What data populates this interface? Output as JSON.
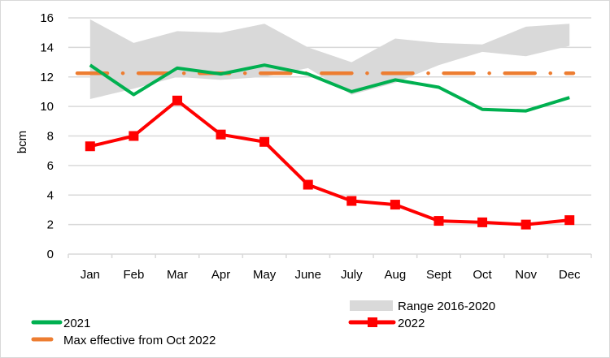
{
  "chart_data": {
    "type": "line",
    "title": "",
    "xlabel": "",
    "ylabel": "bcm",
    "ylim": [
      0,
      16
    ],
    "yticks": [
      0,
      2,
      4,
      6,
      8,
      10,
      12,
      14,
      16
    ],
    "grid": true,
    "legend_position": "bottom",
    "categories": [
      "Jan",
      "Feb",
      "Mar",
      "Apr",
      "May",
      "June",
      "July",
      "Aug",
      "Sept",
      "Oct",
      "Nov",
      "Dec"
    ],
    "range": {
      "name": "Range 2016-2020",
      "color": "#d9d9d9",
      "low": [
        10.5,
        11.2,
        12.0,
        11.8,
        12.0,
        12.6,
        10.8,
        11.6,
        12.8,
        13.7,
        13.4,
        14.1
      ],
      "high": [
        15.9,
        14.3,
        15.1,
        15.0,
        15.6,
        14.0,
        13.0,
        14.6,
        14.3,
        14.2,
        15.4,
        15.6
      ]
    },
    "series": [
      {
        "name": "2021",
        "color": "#00b050",
        "marker": "none",
        "values": [
          12.8,
          10.8,
          12.6,
          12.2,
          12.8,
          12.2,
          11.0,
          11.8,
          11.3,
          9.8,
          9.7,
          10.6
        ]
      },
      {
        "name": "2022",
        "color": "#ff0000",
        "marker": "square",
        "values": [
          7.3,
          8.0,
          10.4,
          8.1,
          7.6,
          4.7,
          3.6,
          3.35,
          2.25,
          2.15,
          2.0,
          2.3
        ]
      },
      {
        "name": "Max effective from Oct 2022",
        "color": "#ed7d31",
        "marker": "none",
        "dash": "dash-dot",
        "values": [
          12.25,
          12.25,
          12.25,
          12.25,
          12.25,
          12.25,
          12.25,
          12.25,
          12.25,
          12.25,
          12.25,
          12.25
        ]
      }
    ]
  }
}
